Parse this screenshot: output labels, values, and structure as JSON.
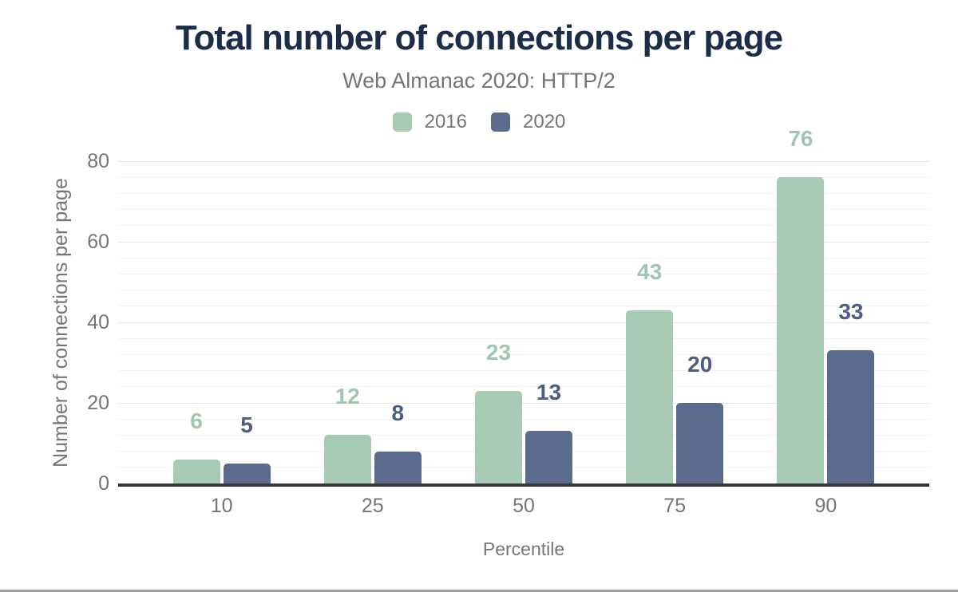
{
  "theme": {
    "background": "#ffffff",
    "title_color": "#1b2d49",
    "text_color": "#757575",
    "axis_line_color": "#35393d",
    "grid_major_color": "#e8e8e8",
    "grid_minor_color": "#f4f4f4",
    "bottom_border_color": "#a2a2a2"
  },
  "chart_data": {
    "type": "bar",
    "title": "Total number of connections per page",
    "subtitle": "Web Almanac 2020: HTTP/2",
    "xlabel": "Percentile",
    "ylabel": "Number of connections per page",
    "categories": [
      "10",
      "25",
      "50",
      "75",
      "90"
    ],
    "series": [
      {
        "name": "2016",
        "color": "#a8cbb6",
        "label_color": "#a1c6b0",
        "values": [
          6,
          12,
          23,
          43,
          76
        ]
      },
      {
        "name": "2020",
        "color": "#5a6b8d",
        "label_color": "#4d5f80",
        "values": [
          5,
          8,
          13,
          20,
          33
        ]
      }
    ],
    "ylim": [
      0,
      80
    ],
    "yticks": [
      0,
      20,
      40,
      60,
      80
    ],
    "grid": {
      "minor_every": 4,
      "major_every": 20
    },
    "legend_position": "top",
    "legend_entries": [
      "2016",
      "2020"
    ]
  }
}
